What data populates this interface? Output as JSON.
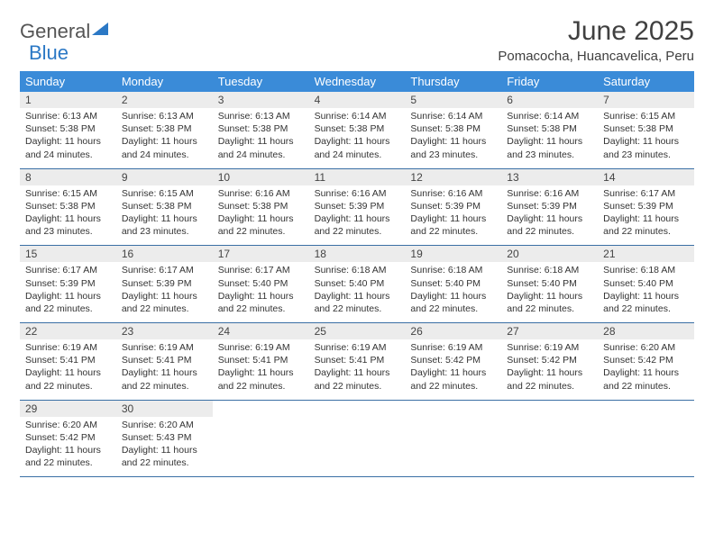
{
  "logo": {
    "text1": "General",
    "text2": "Blue"
  },
  "title": "June 2025",
  "location": "Pomacocha, Huancavelica, Peru",
  "dayNames": [
    "Sunday",
    "Monday",
    "Tuesday",
    "Wednesday",
    "Thursday",
    "Friday",
    "Saturday"
  ],
  "colors": {
    "headerBg": "#3a8bd8",
    "headerText": "#ffffff",
    "numRowBg": "#ececec",
    "borderColor": "#3a6fa5",
    "logoBlue": "#2b78c5"
  },
  "weeks": [
    [
      {
        "n": "1",
        "sr": "6:13 AM",
        "ss": "5:38 PM",
        "dl": "11 hours and 24 minutes."
      },
      {
        "n": "2",
        "sr": "6:13 AM",
        "ss": "5:38 PM",
        "dl": "11 hours and 24 minutes."
      },
      {
        "n": "3",
        "sr": "6:13 AM",
        "ss": "5:38 PM",
        "dl": "11 hours and 24 minutes."
      },
      {
        "n": "4",
        "sr": "6:14 AM",
        "ss": "5:38 PM",
        "dl": "11 hours and 24 minutes."
      },
      {
        "n": "5",
        "sr": "6:14 AM",
        "ss": "5:38 PM",
        "dl": "11 hours and 23 minutes."
      },
      {
        "n": "6",
        "sr": "6:14 AM",
        "ss": "5:38 PM",
        "dl": "11 hours and 23 minutes."
      },
      {
        "n": "7",
        "sr": "6:15 AM",
        "ss": "5:38 PM",
        "dl": "11 hours and 23 minutes."
      }
    ],
    [
      {
        "n": "8",
        "sr": "6:15 AM",
        "ss": "5:38 PM",
        "dl": "11 hours and 23 minutes."
      },
      {
        "n": "9",
        "sr": "6:15 AM",
        "ss": "5:38 PM",
        "dl": "11 hours and 23 minutes."
      },
      {
        "n": "10",
        "sr": "6:16 AM",
        "ss": "5:38 PM",
        "dl": "11 hours and 22 minutes."
      },
      {
        "n": "11",
        "sr": "6:16 AM",
        "ss": "5:39 PM",
        "dl": "11 hours and 22 minutes."
      },
      {
        "n": "12",
        "sr": "6:16 AM",
        "ss": "5:39 PM",
        "dl": "11 hours and 22 minutes."
      },
      {
        "n": "13",
        "sr": "6:16 AM",
        "ss": "5:39 PM",
        "dl": "11 hours and 22 minutes."
      },
      {
        "n": "14",
        "sr": "6:17 AM",
        "ss": "5:39 PM",
        "dl": "11 hours and 22 minutes."
      }
    ],
    [
      {
        "n": "15",
        "sr": "6:17 AM",
        "ss": "5:39 PM",
        "dl": "11 hours and 22 minutes."
      },
      {
        "n": "16",
        "sr": "6:17 AM",
        "ss": "5:39 PM",
        "dl": "11 hours and 22 minutes."
      },
      {
        "n": "17",
        "sr": "6:17 AM",
        "ss": "5:40 PM",
        "dl": "11 hours and 22 minutes."
      },
      {
        "n": "18",
        "sr": "6:18 AM",
        "ss": "5:40 PM",
        "dl": "11 hours and 22 minutes."
      },
      {
        "n": "19",
        "sr": "6:18 AM",
        "ss": "5:40 PM",
        "dl": "11 hours and 22 minutes."
      },
      {
        "n": "20",
        "sr": "6:18 AM",
        "ss": "5:40 PM",
        "dl": "11 hours and 22 minutes."
      },
      {
        "n": "21",
        "sr": "6:18 AM",
        "ss": "5:40 PM",
        "dl": "11 hours and 22 minutes."
      }
    ],
    [
      {
        "n": "22",
        "sr": "6:19 AM",
        "ss": "5:41 PM",
        "dl": "11 hours and 22 minutes."
      },
      {
        "n": "23",
        "sr": "6:19 AM",
        "ss": "5:41 PM",
        "dl": "11 hours and 22 minutes."
      },
      {
        "n": "24",
        "sr": "6:19 AM",
        "ss": "5:41 PM",
        "dl": "11 hours and 22 minutes."
      },
      {
        "n": "25",
        "sr": "6:19 AM",
        "ss": "5:41 PM",
        "dl": "11 hours and 22 minutes."
      },
      {
        "n": "26",
        "sr": "6:19 AM",
        "ss": "5:42 PM",
        "dl": "11 hours and 22 minutes."
      },
      {
        "n": "27",
        "sr": "6:19 AM",
        "ss": "5:42 PM",
        "dl": "11 hours and 22 minutes."
      },
      {
        "n": "28",
        "sr": "6:20 AM",
        "ss": "5:42 PM",
        "dl": "11 hours and 22 minutes."
      }
    ],
    [
      {
        "n": "29",
        "sr": "6:20 AM",
        "ss": "5:42 PM",
        "dl": "11 hours and 22 minutes."
      },
      {
        "n": "30",
        "sr": "6:20 AM",
        "ss": "5:43 PM",
        "dl": "11 hours and 22 minutes."
      },
      null,
      null,
      null,
      null,
      null
    ]
  ],
  "labels": {
    "sunrise": "Sunrise:",
    "sunset": "Sunset:",
    "daylight": "Daylight:"
  }
}
